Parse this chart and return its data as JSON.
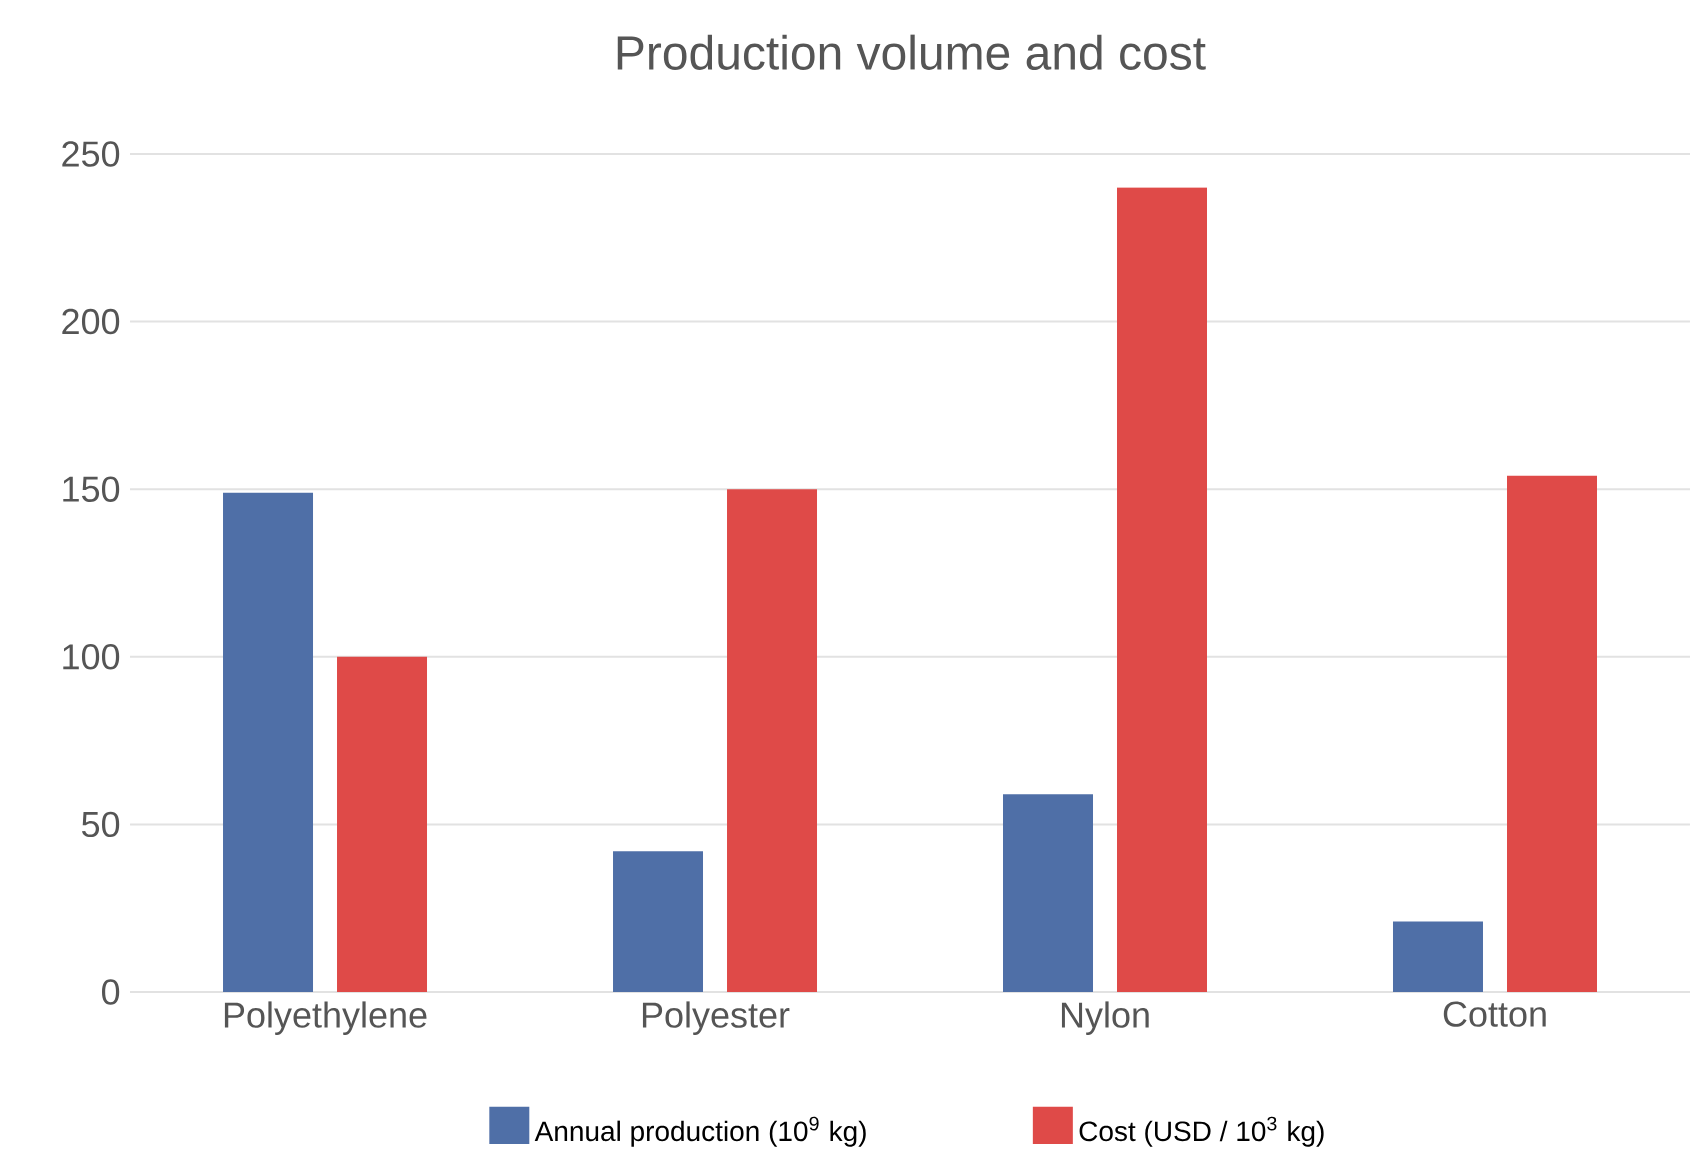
{
  "chart_data": {
    "type": "bar",
    "title": "Production volume and cost",
    "categories": [
      "Polyethylene",
      "Polyester",
      "Nylon",
      "Cotton"
    ],
    "series": [
      {
        "name": "Annual production (10$^{9}$ kg)",
        "color": "#4f6fa7",
        "values": [
          149,
          42,
          59,
          21
        ]
      },
      {
        "name": "Cost (USD / 10$^{3}$ kg)",
        "color": "#df4a48",
        "values": [
          100,
          150,
          240,
          154
        ]
      }
    ],
    "ylim": [
      0,
      250
    ],
    "yticks": [
      0,
      50,
      100,
      150,
      200,
      250
    ],
    "grid": "y",
    "legend": "bottom"
  }
}
